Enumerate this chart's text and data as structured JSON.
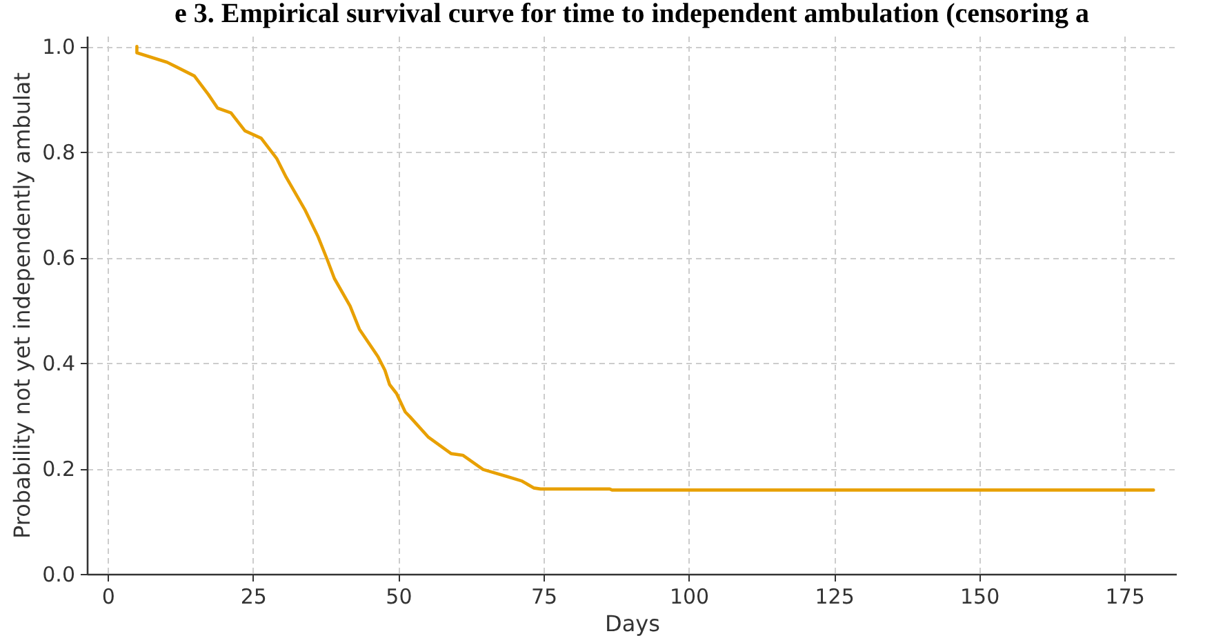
{
  "chart_data": {
    "type": "line",
    "title": "e 3. Empirical survival curve for time to independent ambulation (censoring a",
    "xlabel": "Days",
    "ylabel": "Probability not yet independently ambulat",
    "x": [
      5,
      5,
      10.2,
      14.9,
      17.3,
      18.9,
      21.2,
      23.6,
      26.4,
      29.1,
      30.7,
      33.9,
      36.2,
      37.8,
      39,
      41.7,
      43.3,
      46.5,
      47.7,
      48.5,
      49.7,
      51.2,
      52,
      55.2,
      59.1,
      61.1,
      64.6,
      68.6,
      71.3,
      73.3,
      74.5,
      86.4,
      86.8,
      180
    ],
    "series": [
      {
        "color": "#e8a000",
        "values": [
          1.0,
          0.988,
          0.97,
          0.944,
          0.909,
          0.883,
          0.874,
          0.84,
          0.826,
          0.787,
          0.752,
          0.691,
          0.639,
          0.595,
          0.56,
          0.508,
          0.464,
          0.412,
          0.386,
          0.359,
          0.342,
          0.307,
          0.298,
          0.259,
          0.228,
          0.225,
          0.198,
          0.185,
          0.176,
          0.163,
          0.161,
          0.161,
          0.159,
          0.159
        ]
      }
    ],
    "xlim": [
      -3.6,
      184
    ],
    "ylim": [
      0,
      1.02
    ],
    "xticks": [
      0,
      25,
      50,
      75,
      100,
      125,
      150,
      175
    ],
    "yticks": [
      {
        "value": 0,
        "label": "0.0"
      },
      {
        "value": 0.2,
        "label": "0.2"
      },
      {
        "value": 0.4,
        "label": "0.4"
      },
      {
        "value": 0.6,
        "label": "0.6"
      },
      {
        "value": 0.8,
        "label": "0.8"
      },
      {
        "value": 1,
        "label": "1.0"
      }
    ],
    "grid": true,
    "line_style": "solid",
    "marker": "none"
  }
}
